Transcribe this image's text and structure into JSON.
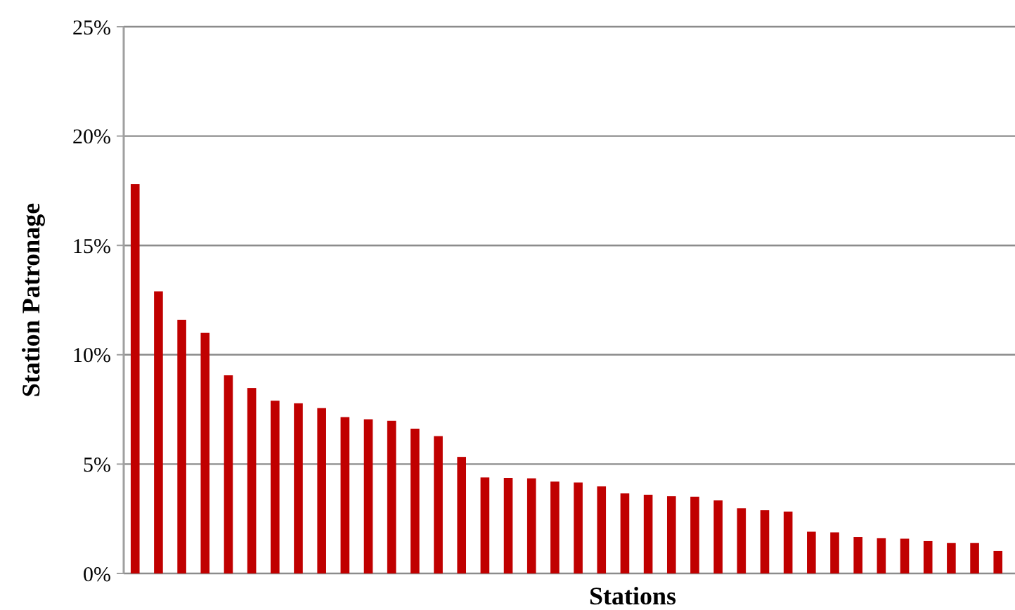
{
  "chart_data": {
    "type": "bar",
    "xlabel": "Stations",
    "ylabel": "Station Patronage",
    "categories": [
      null,
      null,
      null,
      null,
      null,
      null,
      null,
      null,
      null,
      null,
      null,
      null,
      null,
      null,
      null,
      null,
      null,
      null,
      null,
      null,
      null,
      null,
      null,
      null,
      null,
      null,
      null,
      null,
      null,
      null,
      null,
      null,
      null,
      null,
      null,
      null,
      null,
      null
    ],
    "values": [
      17.8,
      12.9,
      11.6,
      11.0,
      9.06,
      8.48,
      7.9,
      7.78,
      7.56,
      7.15,
      7.05,
      6.98,
      6.62,
      6.28,
      5.33,
      4.39,
      4.37,
      4.35,
      4.2,
      4.16,
      3.98,
      3.66,
      3.6,
      3.53,
      3.51,
      3.34,
      2.98,
      2.89,
      2.83,
      1.91,
      1.88,
      1.67,
      1.61,
      1.59,
      1.48,
      1.39,
      1.39,
      1.03
    ],
    "color": "#c00000",
    "ylim": [
      0,
      25
    ],
    "yticks": [
      {
        "value": 0,
        "label": "0%"
      },
      {
        "value": 5,
        "label": "5%"
      },
      {
        "value": 10,
        "label": "10%"
      },
      {
        "value": 15,
        "label": "15%"
      },
      {
        "value": 20,
        "label": "20%"
      },
      {
        "value": 25,
        "label": "25%"
      }
    ],
    "grid": "y"
  }
}
